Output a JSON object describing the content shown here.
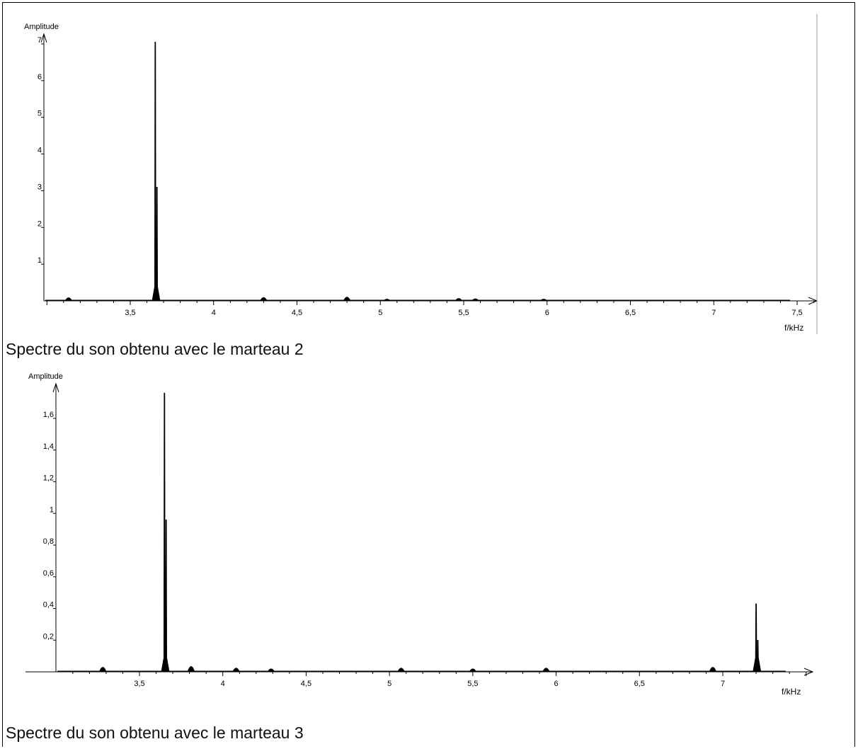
{
  "chart_data": [
    {
      "type": "bar",
      "ylabel": "Amplitude",
      "xlabel": "f/kHz",
      "xlim": [
        3.0,
        7.6
      ],
      "ylim": [
        0,
        7.2
      ],
      "x_ticks": [
        "3,5",
        "4",
        "4,5",
        "5",
        "5,5",
        "6",
        "6,5",
        "7",
        "7,5"
      ],
      "y_ticks": [
        "1",
        "2",
        "3",
        "4",
        "5",
        "6",
        "7"
      ],
      "peaks": [
        {
          "x": 3.13,
          "y": 0.14
        },
        {
          "x": 3.65,
          "y": 7.05
        },
        {
          "x": 3.66,
          "y": 3.1
        },
        {
          "x": 4.3,
          "y": 0.15
        },
        {
          "x": 4.8,
          "y": 0.17
        },
        {
          "x": 5.04,
          "y": 0.06
        },
        {
          "x": 5.47,
          "y": 0.1
        },
        {
          "x": 5.57,
          "y": 0.08
        },
        {
          "x": 5.98,
          "y": 0.06
        }
      ],
      "caption": "Spectre du son obtenu avec le marteau 2"
    },
    {
      "type": "bar",
      "ylabel": "Amplitude",
      "xlabel": "f/kHz",
      "xlim": [
        2.83,
        7.5
      ],
      "ylim": [
        0,
        1.82
      ],
      "x_ticks": [
        "3,5",
        "4",
        "4,5",
        "5",
        "5,5",
        "6",
        "6,5",
        "7"
      ],
      "y_ticks": [
        "0,2",
        "0,4",
        "0,6",
        "0,8",
        "1",
        "1,2",
        "1,4",
        "1,6"
      ],
      "peaks": [
        {
          "x": 3.28,
          "y": 0.05
        },
        {
          "x": 3.65,
          "y": 1.76
        },
        {
          "x": 3.66,
          "y": 0.96
        },
        {
          "x": 3.81,
          "y": 0.06
        },
        {
          "x": 4.08,
          "y": 0.04
        },
        {
          "x": 4.29,
          "y": 0.03
        },
        {
          "x": 5.07,
          "y": 0.04
        },
        {
          "x": 5.5,
          "y": 0.03
        },
        {
          "x": 5.94,
          "y": 0.04
        },
        {
          "x": 6.94,
          "y": 0.05
        },
        {
          "x": 7.2,
          "y": 0.43
        },
        {
          "x": 7.21,
          "y": 0.2
        }
      ],
      "caption": "Spectre du son obtenu avec le marteau 3"
    }
  ]
}
